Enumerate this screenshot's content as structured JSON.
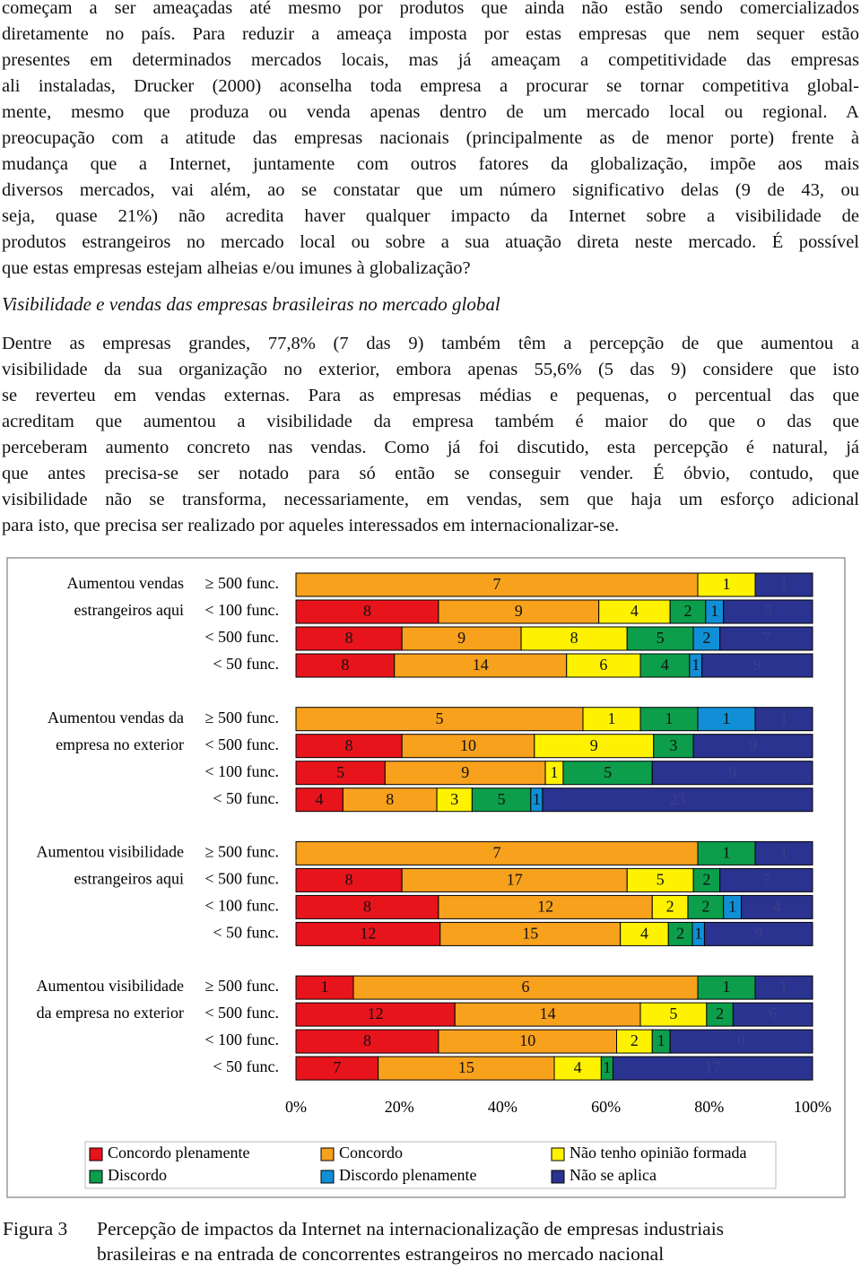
{
  "paragraphs": [
    {
      "lines": [
        "começam a ser ameaçadas até mesmo por produtos que ainda não estão sendo comercializados",
        "diretamente no país. Para reduzir a ameaça imposta por estas empresas que nem sequer estão",
        "presentes em determinados mercados locais, mas já ameaçam a competitividade das empresas",
        "ali instaladas, Drucker (2000) aconselha toda empresa a procurar se tornar competitiva global-",
        "mente, mesmo que produza ou venda apenas dentro de um mercado local ou regional. A",
        "preocupação com a atitude das empresas nacionais (principalmente as de menor porte) frente à",
        "mudança que a Internet, juntamente com outros fatores da globalização, impõe aos mais",
        "diversos mercados, vai além, ao se constatar que um número significativo delas (9 de 43, ou",
        "seja, quase 21%) não acredita haver qualquer impacto da Internet sobre a visibilidade de",
        "produtos estrangeiros no mercado local ou sobre a sua atuação direta neste mercado. É possível",
        "que estas empresas estejam alheias e/ou imunes à globalização?"
      ]
    },
    {
      "lines": [
        "Dentre as empresas grandes, 77,8% (7 das 9) também têm a percepção de que aumentou a",
        "visibilidade da sua organização no exterior, embora apenas 55,6% (5 das 9) considere que isto",
        "se reverteu em vendas externas. Para as empresas médias e pequenas, o percentual das que",
        "acreditam que aumentou a visibilidade da empresa também é maior do que o das que",
        "perceberam aumento concreto nas vendas. Como já foi discutido, esta percepção é natural, já",
        "que antes precisa-se ser notado para só então se conseguir vender. É óbvio, contudo, que",
        "visibilidade não se transforma, necessariamente, em vendas, sem que haja um esforço adicional",
        "para isto, que precisa ser realizado por aqueles interessados em internacionalizar-se."
      ]
    }
  ],
  "heading": "Visibilidade e vendas das empresas brasileiras no mercado global",
  "caption": {
    "label": "Figura 3",
    "lines": [
      "Percepção de impactos da Internet na internacionalização de empresas industriais",
      "brasileiras e na entrada de concorrentes estrangeiros no mercado nacional"
    ]
  },
  "chart_data": {
    "type": "bar",
    "orientation": "horizontal",
    "stacked": "percent",
    "groups": [
      {
        "label": [
          "Aumentou vendas",
          "estrangeiros aqui"
        ],
        "categories": [
          "≥ 500 func.",
          "< 100 func.",
          "< 500 func.",
          "<  50 func."
        ]
      },
      {
        "label": [
          "Aumentou vendas da",
          "empresa no exterior"
        ],
        "categories": [
          "≥ 500 func.",
          "< 500 func.",
          "< 100 func.",
          "<  50 func."
        ]
      },
      {
        "label": [
          "Aumentou visibilidade",
          "estrangeiros aqui"
        ],
        "categories": [
          "≥ 500 func.",
          "< 500 func.",
          "< 100 func.",
          "<  50 func."
        ]
      },
      {
        "label": [
          "Aumentou visibilidade",
          "da empresa no exterior"
        ],
        "categories": [
          "≥ 500 func.",
          "< 500 func.",
          "< 100 func.",
          "<  50 func."
        ]
      }
    ],
    "series": [
      {
        "name": "Concordo plenamente",
        "color": "#e8141c",
        "values": [
          null,
          8,
          8,
          8,
          null,
          8,
          5,
          4,
          null,
          8,
          8,
          12,
          1,
          12,
          8,
          7
        ]
      },
      {
        "name": "Concordo",
        "color": "#f7a11d",
        "values": [
          7,
          9,
          9,
          14,
          5,
          10,
          9,
          8,
          7,
          17,
          12,
          15,
          6,
          14,
          10,
          15
        ]
      },
      {
        "name": "Não tenho opinião formada",
        "color": "#fff200",
        "values": [
          1,
          4,
          8,
          6,
          1,
          9,
          1,
          3,
          null,
          5,
          2,
          4,
          null,
          5,
          2,
          4
        ]
      },
      {
        "name": "Discordo",
        "color": "#0c9e4b",
        "values": [
          null,
          2,
          5,
          4,
          1,
          3,
          5,
          5,
          1,
          2,
          2,
          2,
          1,
          2,
          1,
          1
        ]
      },
      {
        "name": "Discordo plenamente",
        "color": "#108fd6",
        "values": [
          null,
          1,
          2,
          1,
          1,
          null,
          null,
          1,
          null,
          null,
          1,
          1,
          null,
          null,
          null,
          null
        ]
      },
      {
        "name": "Não se aplica",
        "color": "#2b3390",
        "values": [
          1,
          5,
          7,
          9,
          1,
          9,
          9,
          23,
          1,
          7,
          4,
          9,
          1,
          6,
          8,
          17
        ]
      }
    ],
    "xlim": [
      0,
      100
    ],
    "xticks": [
      {
        "value": 0,
        "label": "0%"
      },
      {
        "value": 20,
        "label": "20%"
      },
      {
        "value": 40,
        "label": "40%"
      },
      {
        "value": 60,
        "label": "60%"
      },
      {
        "value": 80,
        "label": "80%"
      },
      {
        "value": 100,
        "label": "100%"
      }
    ],
    "legend": "bottom"
  }
}
